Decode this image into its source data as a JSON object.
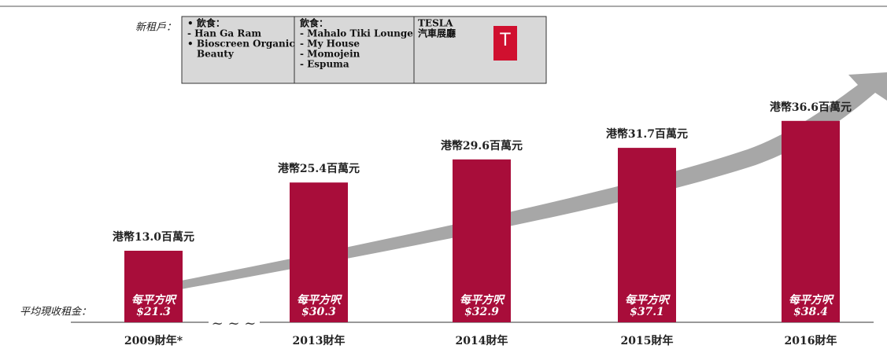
{
  "chart_data": {
    "type": "bar",
    "categories": [
      "2009財年*",
      "2013財年",
      "2014財年",
      "2015財年",
      "2016財年"
    ],
    "values": [
      13.0,
      25.4,
      29.6,
      31.7,
      36.6
    ],
    "value_labels": [
      "港幣13.0百萬元",
      "港幣25.4百萬元",
      "港幣29.6百萬元",
      "港幣31.7百萬元",
      "港幣36.6百萬元"
    ],
    "color": "#a80d3a",
    "rent_axis_label": "平均現收租金：",
    "rent_label": "每平方呎",
    "rent_values": [
      21.3,
      30.3,
      32.9,
      37.1,
      38.4
    ],
    "rent_value_labels": [
      "$21.3",
      "$30.3",
      "$32.9",
      "$37.1",
      "$38.4"
    ],
    "tenants_label": "新租戶：",
    "tenant_boxes": [
      [
        "• 飲食：",
        "- Han Ga Ram",
        "• Bioscreen Organic",
        "Beauty"
      ],
      [
        "飲食：",
        "- Mahalo Tiki Lounge",
        "- My House",
        "- Momojein",
        "- Espuma"
      ],
      [
        "TESLA",
        "汽車展廳"
      ]
    ]
  }
}
